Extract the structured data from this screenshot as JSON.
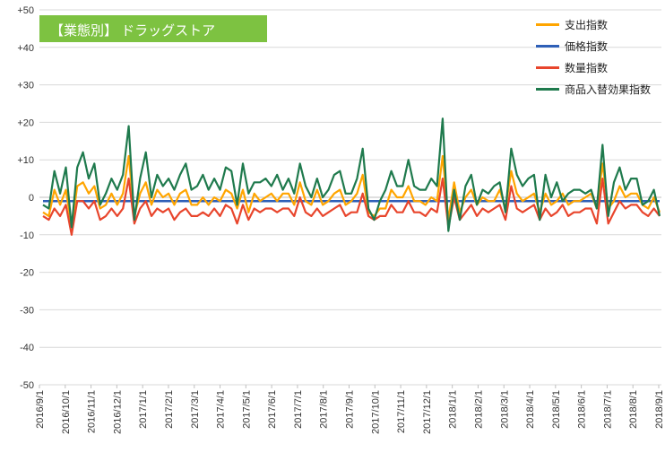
{
  "chart_data": {
    "type": "line",
    "title": "【業態別】 ドラッグストア",
    "ylim": [
      -50,
      50
    ],
    "y_ticks": [
      "+50",
      "+40",
      "+30",
      "+20",
      "+10",
      "0",
      "-10",
      "-20",
      "-30",
      "-40",
      "-50"
    ],
    "y_tick_values": [
      50,
      40,
      30,
      20,
      10,
      0,
      -10,
      -20,
      -30,
      -40,
      -50
    ],
    "x_tick_labels": [
      "2016/9/1",
      "2016/10/1",
      "2016/11/1",
      "2016/12/1",
      "2017/1/1",
      "2017/2/1",
      "2017/3/1",
      "2017/4/1",
      "2017/5/1",
      "2017/6/1",
      "2017/7/1",
      "2017/8/1",
      "2017/9/1",
      "2017/10/1",
      "2017/11/1",
      "2017/12/1",
      "2018/1/1",
      "2018/2/1",
      "2018/3/1",
      "2018/4/1",
      "2018/5/1",
      "2018/6/1",
      "2018/7/1",
      "2018/8/1",
      "2018/9/1"
    ],
    "x_period": "weekly",
    "grid": true,
    "legend_position": "top-right",
    "series": [
      {
        "name": "支出指数",
        "color": "#ffa500",
        "values": [
          -4,
          -5,
          2,
          -2,
          2,
          -8,
          3,
          4,
          1,
          3,
          -3,
          -2,
          1,
          -2,
          1,
          11,
          -5,
          1,
          4,
          -2,
          2,
          0,
          1,
          -2,
          1,
          2,
          -2,
          -2,
          0,
          -2,
          0,
          -1,
          2,
          1,
          -3,
          2,
          -4,
          1,
          -1,
          0,
          1,
          -1,
          1,
          1,
          -2,
          4,
          -1,
          -2,
          2,
          -2,
          -1,
          1,
          2,
          -2,
          -1,
          1,
          6,
          -4,
          -5,
          -3,
          -3,
          2,
          0,
          0,
          3,
          -1,
          -1,
          -2,
          0,
          -1,
          11,
          -6,
          4,
          -4,
          0,
          2,
          -2,
          0,
          -1,
          -1,
          2,
          -3,
          7,
          1,
          -1,
          0,
          1,
          -4,
          1,
          -2,
          -1,
          1,
          -2,
          -1,
          -1,
          0,
          1,
          -3,
          9,
          -3,
          -1,
          3,
          0,
          1,
          1,
          -2,
          -3,
          0,
          -4
        ]
      },
      {
        "name": "価格指数",
        "color": "#2e5fb7",
        "values": [
          -1,
          -1,
          -1,
          -1,
          -1,
          -1,
          -1,
          -1,
          -1,
          -1,
          -1,
          -1,
          -1,
          -1,
          -1,
          -1,
          -1,
          -1,
          -1,
          -1,
          -1,
          -1,
          -1,
          -1,
          -1,
          -1,
          -1,
          -1,
          -1,
          -1,
          -1,
          -1,
          -1,
          -1,
          -1,
          -1,
          -1,
          -1,
          -1,
          -1,
          -1,
          -1,
          -1,
          -1,
          -1,
          -1,
          -1,
          -1,
          -1,
          -1,
          -1,
          -1,
          -1,
          -1,
          -1,
          -1,
          -1,
          -1,
          -1,
          -1,
          -1,
          -1,
          -1,
          -1,
          -1,
          -1,
          -1,
          -1,
          -1,
          -1,
          -1,
          -1,
          -1,
          -1,
          -1,
          -1,
          -1,
          -1,
          -1,
          -1,
          -1,
          -1,
          -1,
          -1,
          -1,
          -1,
          -1,
          -1,
          -1,
          -1,
          -1,
          -1,
          -1,
          -1,
          -1,
          -1,
          -1,
          -1,
          -1,
          -1,
          -1,
          -1,
          -1,
          -1,
          -1,
          -1,
          -1,
          -1,
          -1
        ]
      },
      {
        "name": "数量指数",
        "color": "#e8452c",
        "values": [
          -5,
          -6,
          -3,
          -5,
          -2,
          -10,
          -1,
          -1,
          -3,
          -1,
          -6,
          -5,
          -3,
          -5,
          -3,
          5,
          -7,
          -3,
          -1,
          -5,
          -3,
          -4,
          -3,
          -6,
          -4,
          -3,
          -5,
          -5,
          -4,
          -5,
          -3,
          -5,
          -2,
          -3,
          -7,
          -2,
          -6,
          -3,
          -4,
          -3,
          -3,
          -4,
          -3,
          -3,
          -5,
          0,
          -4,
          -5,
          -3,
          -5,
          -4,
          -3,
          -2,
          -5,
          -4,
          -4,
          1,
          -5,
          -6,
          -5,
          -5,
          -2,
          -4,
          -4,
          -1,
          -4,
          -4,
          -5,
          -3,
          -4,
          5,
          -8,
          0,
          -6,
          -4,
          -2,
          -5,
          -3,
          -4,
          -3,
          -2,
          -6,
          3,
          -3,
          -4,
          -3,
          -2,
          -6,
          -3,
          -5,
          -4,
          -2,
          -5,
          -4,
          -4,
          -3,
          -3,
          -7,
          5,
          -7,
          -4,
          -1,
          -3,
          -2,
          -2,
          -4,
          -5,
          -3,
          -5
        ]
      },
      {
        "name": "商品入替効果指数",
        "color": "#1f7a4d",
        "values": [
          -2,
          -3,
          7,
          1,
          8,
          -8,
          8,
          12,
          5,
          9,
          -2,
          1,
          5,
          2,
          6,
          19,
          -6,
          5,
          12,
          0,
          6,
          3,
          5,
          2,
          6,
          9,
          2,
          3,
          6,
          2,
          5,
          2,
          8,
          7,
          -2,
          9,
          1,
          4,
          4,
          5,
          3,
          6,
          2,
          5,
          1,
          9,
          3,
          0,
          5,
          0,
          2,
          6,
          7,
          1,
          1,
          5,
          13,
          -3,
          -6,
          -1,
          2,
          7,
          3,
          3,
          10,
          3,
          2,
          2,
          5,
          3,
          21,
          -9,
          2,
          -6,
          3,
          6,
          -2,
          2,
          1,
          3,
          4,
          -4,
          13,
          6,
          3,
          5,
          6,
          -6,
          6,
          0,
          4,
          -1,
          1,
          2,
          2,
          1,
          2,
          -3,
          14,
          -5,
          4,
          8,
          2,
          5,
          5,
          -2,
          -1,
          2,
          -5
        ]
      }
    ]
  }
}
